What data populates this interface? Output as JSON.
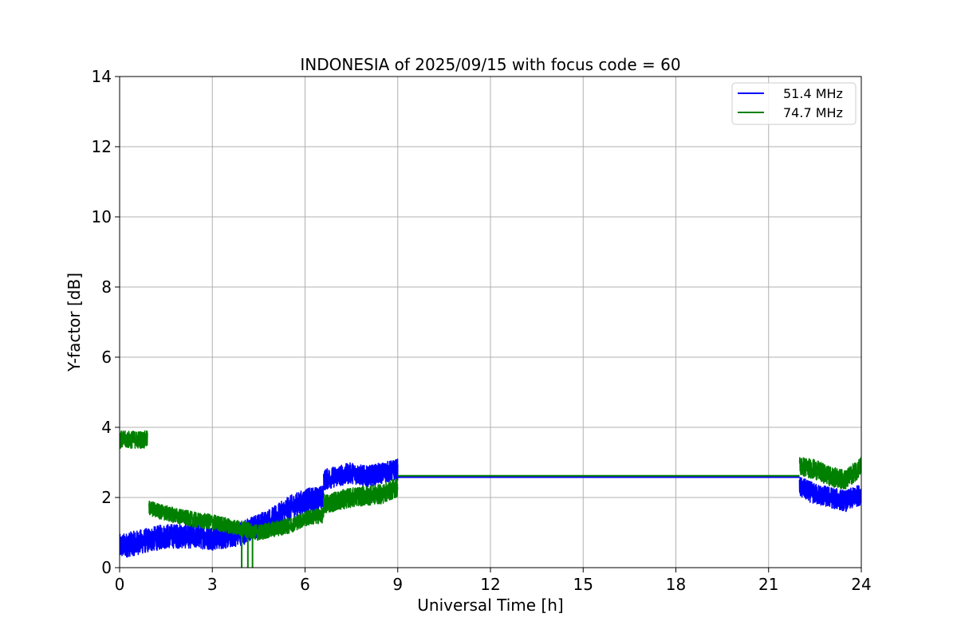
{
  "chart_data": {
    "type": "line",
    "title": "INDONESIA of 2025/09/15 with focus code = 60",
    "xlabel": "Universal Time [h]",
    "ylabel": "Y-factor [dB]",
    "xlim": [
      0,
      24
    ],
    "ylim": [
      0,
      14
    ],
    "xticks": [
      "0",
      "3",
      "6",
      "9",
      "12",
      "15",
      "18",
      "21",
      "24"
    ],
    "yticks": [
      "0",
      "2",
      "4",
      "6",
      "8",
      "10",
      "12",
      "14"
    ],
    "grid": true,
    "legend_position": "top-right",
    "series": [
      {
        "name": "51.4 MHz",
        "color": "#0000ff",
        "noisy_segments": [
          {
            "x": [
              0,
              0.5,
              1.0,
              1.5,
              2.0,
              2.5,
              3.0,
              3.5,
              4.0,
              4.5,
              5.0,
              5.5,
              6.0,
              6.6
            ],
            "y": [
              0.6,
              0.7,
              0.8,
              0.9,
              0.9,
              0.9,
              0.85,
              0.9,
              1.0,
              1.2,
              1.4,
              1.7,
              1.9,
              2.0
            ],
            "amp": 0.35
          },
          {
            "x": [
              6.6,
              7.0,
              7.5,
              8.0,
              8.5,
              9.0
            ],
            "y": [
              2.5,
              2.6,
              2.7,
              2.6,
              2.7,
              2.8
            ],
            "amp": 0.3
          },
          {
            "x": [
              22.0,
              22.5,
              23.0,
              23.5,
              24.0
            ],
            "y": [
              2.3,
              2.1,
              2.0,
              1.9,
              2.1
            ],
            "amp": 0.3
          }
        ],
        "flat_segment": {
          "x": [
            9.0,
            22.0
          ],
          "y": 2.58
        }
      },
      {
        "name": "74.7 MHz",
        "color": "#008000",
        "noisy_segments": [
          {
            "x": [
              0,
              0.9
            ],
            "y": [
              3.65,
              3.65
            ],
            "amp": 0.25
          },
          {
            "x": [
              0.95,
              1.5,
              2.0,
              2.5,
              3.0,
              3.5,
              4.0,
              4.5,
              5.0,
              5.5,
              6.0,
              6.6
            ],
            "y": [
              1.7,
              1.55,
              1.45,
              1.35,
              1.3,
              1.2,
              1.1,
              1.0,
              1.1,
              1.2,
              1.4,
              1.5
            ],
            "amp": 0.22
          },
          {
            "x": [
              6.6,
              7.0,
              7.5,
              8.0,
              8.5,
              9.0
            ],
            "y": [
              1.8,
              1.9,
              2.0,
              2.05,
              2.1,
              2.3
            ],
            "amp": 0.28
          },
          {
            "x": [
              22.0,
              22.5,
              23.0,
              23.5,
              24.0
            ],
            "y": [
              2.9,
              2.8,
              2.6,
              2.5,
              2.9
            ],
            "amp": 0.28
          }
        ],
        "dips": [
          {
            "x": 3.95,
            "y": 0.0
          },
          {
            "x": 4.15,
            "y": 0.0
          },
          {
            "x": 4.3,
            "y": 0.0
          }
        ],
        "flat_segment": {
          "x": [
            9.0,
            22.0
          ],
          "y": 2.62
        }
      }
    ]
  }
}
